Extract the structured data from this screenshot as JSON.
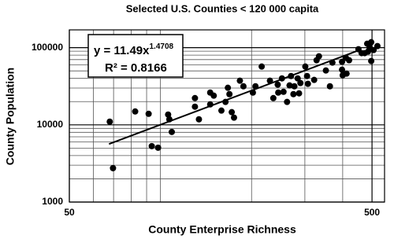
{
  "chart_data": {
    "type": "scatter",
    "title": "Selected U.S. Counties < 120 000 capita",
    "x_label": "County Enterprise Richness",
    "y_label": "County Population",
    "x_log": true,
    "y_log": true,
    "grid": true,
    "color": "#000000",
    "xlim": [
      50,
      550
    ],
    "ylim": [
      1000,
      170000
    ],
    "xticks": [
      50,
      500
    ],
    "yticks": [
      1000,
      10000,
      100000
    ],
    "xminor": [
      60,
      70,
      80,
      90,
      100,
      200,
      300,
      400
    ],
    "yminor": [
      2000,
      3000,
      4000,
      5000,
      6000,
      7000,
      8000,
      9000,
      20000,
      30000,
      40000,
      50000,
      60000,
      70000,
      80000,
      90000
    ],
    "fit": {
      "label": "y = 11.49x",
      "a": 11.49,
      "exponent": 1.4708,
      "r2_label": "R² = 0.8166",
      "x": [
        67.6,
        457
      ]
    },
    "x": [
      68,
      69.7,
      82.5,
      91.4,
      93.6,
      98.2,
      106,
      107,
      109,
      130,
      130,
      134,
      146,
      146,
      150,
      159,
      164,
      167,
      169,
      172,
      175,
      183,
      188,
      202,
      206,
      216,
      230,
      236,
      244,
      245,
      252,
      255,
      262,
      267,
      270,
      275,
      277,
      284,
      287,
      290,
      301,
      305,
      307,
      322,
      328,
      334,
      352,
      363,
      370,
      398,
      400,
      412,
      398,
      410,
      420,
      462,
      473,
      482,
      485,
      491,
      497,
      506,
      521,
      497,
      451
    ],
    "values": [
      11000,
      2750,
      14900,
      13900,
      5300,
      5060,
      13600,
      11800,
      8090,
      22200,
      17200,
      11800,
      26200,
      18400,
      23900,
      15300,
      19800,
      30200,
      25000,
      14600,
      12400,
      37300,
      31600,
      26200,
      31600,
      56900,
      37300,
      22200,
      33200,
      26200,
      40000,
      26800,
      19800,
      32400,
      42900,
      25000,
      31600,
      40000,
      25600,
      34800,
      56900,
      42900,
      34000,
      38200,
      68700,
      77300,
      50600,
      31600,
      64000,
      65500,
      43900,
      46100,
      51800,
      73700,
      68700,
      84900,
      84900,
      112500,
      88900,
      100000,
      117800,
      93200,
      104800,
      67100,
      95400
    ]
  }
}
